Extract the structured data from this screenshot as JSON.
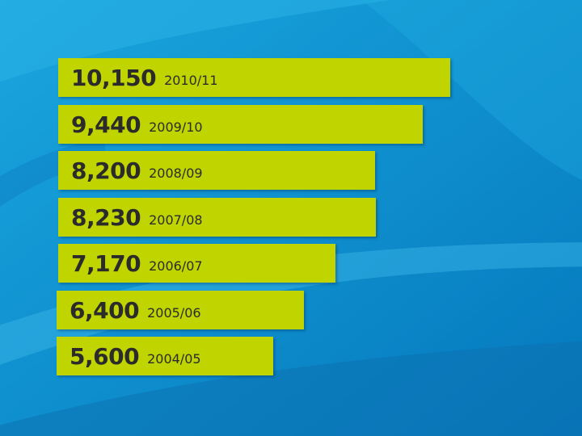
{
  "chart_data": {
    "type": "bar",
    "orientation": "horizontal",
    "categories": [
      "2010/11",
      "2009/10",
      "2008/09",
      "2007/08",
      "2006/07",
      "2005/06",
      "2004/05"
    ],
    "values": [
      10150,
      9440,
      8200,
      8230,
      7170,
      6400,
      5600
    ],
    "value_labels": [
      "10,150",
      "9,440",
      "8,200",
      "8,230",
      "7,170",
      "6,400",
      "5,600"
    ],
    "title": "",
    "xlabel": "",
    "ylabel": "",
    "grid": false,
    "legend": "none",
    "colors": {
      "bar": "#c0d400",
      "text": "#2b2b2b",
      "background": "#0a8fcf"
    }
  }
}
